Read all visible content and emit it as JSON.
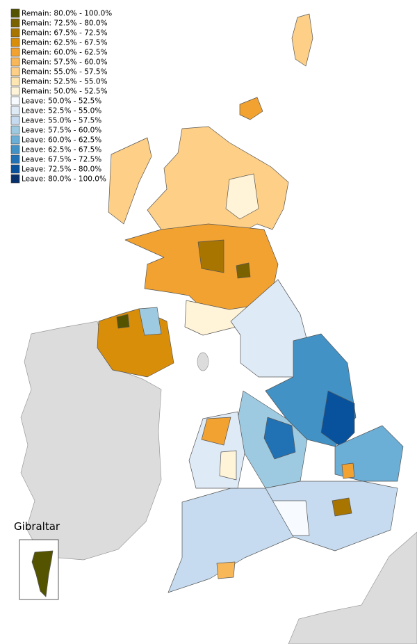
{
  "legend": {
    "items": [
      {
        "label": "Remain: 80.0% - 100.0%",
        "color": "#545400"
      },
      {
        "label": "Remain: 72.5% - 80.0%",
        "color": "#7a6200"
      },
      {
        "label": "Remain: 67.5% - 72.5%",
        "color": "#a87500"
      },
      {
        "label": "Remain: 62.5% - 67.5%",
        "color": "#d98e0a"
      },
      {
        "label": "Remain: 60.0% - 62.5%",
        "color": "#f2a230"
      },
      {
        "label": "Remain: 57.5% - 60.0%",
        "color": "#f8b85a"
      },
      {
        "label": "Remain: 55.0% - 57.5%",
        "color": "#fdcf87"
      },
      {
        "label": "Remain: 52.5% - 55.0%",
        "color": "#fee6b2"
      },
      {
        "label": "Remain: 50.0% - 52.5%",
        "color": "#fff4d8"
      },
      {
        "label": "Leave: 50.0% - 52.5%",
        "color": "#f7fbff"
      },
      {
        "label": "Leave: 52.5% - 55.0%",
        "color": "#dfeaf7"
      },
      {
        "label": "Leave: 55.0% - 57.5%",
        "color": "#c6dbef"
      },
      {
        "label": "Leave: 57.5% - 60.0%",
        "color": "#9ecae1"
      },
      {
        "label": "Leave: 60.0% - 62.5%",
        "color": "#6baed6"
      },
      {
        "label": "Leave: 62.5% - 67.5%",
        "color": "#4292c6"
      },
      {
        "label": "Leave: 67.5% - 72.5%",
        "color": "#2171b5"
      },
      {
        "label": "Leave: 72.5% - 80.0%",
        "color": "#08519c"
      },
      {
        "label": "Leave: 80.0% - 100.0%",
        "color": "#08306b"
      }
    ]
  },
  "inset": {
    "title": "Gibraltar"
  }
}
